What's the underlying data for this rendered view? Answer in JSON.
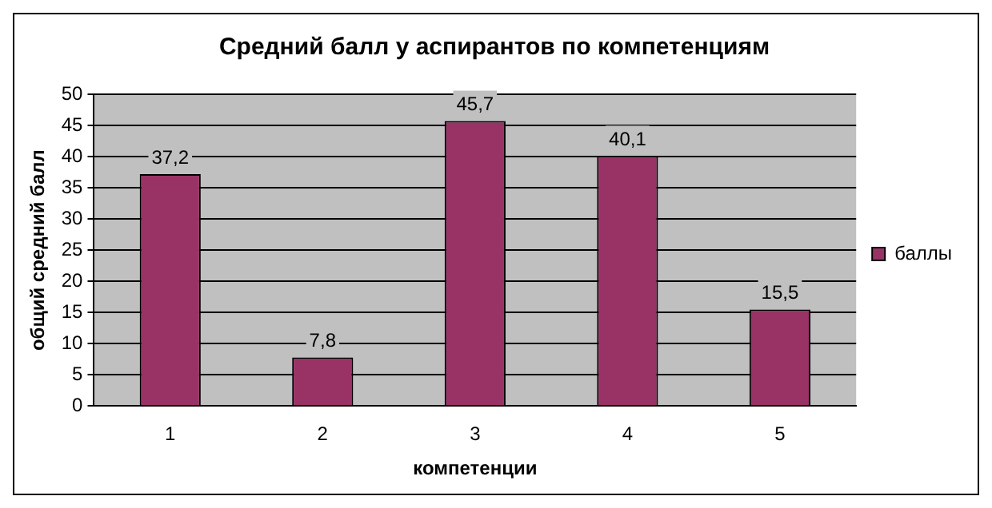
{
  "chart_data": {
    "type": "bar",
    "title": "Средний балл у аспирантов по компетенциям",
    "xlabel": "компетенции",
    "ylabel": "общий средний балл",
    "categories": [
      "1",
      "2",
      "3",
      "4",
      "5"
    ],
    "series": [
      {
        "name": "баллы",
        "color": "#993366",
        "values": [
          37.2,
          7.8,
          45.7,
          40.1,
          15.5
        ],
        "value_labels": [
          "37,2",
          "7,8",
          "45,7",
          "40,1",
          "15,5"
        ]
      }
    ],
    "ylim": [
      0,
      50
    ],
    "yticks": [
      0,
      5,
      10,
      15,
      20,
      25,
      30,
      35,
      40,
      45,
      50
    ],
    "grid": "y",
    "legend": "right"
  }
}
